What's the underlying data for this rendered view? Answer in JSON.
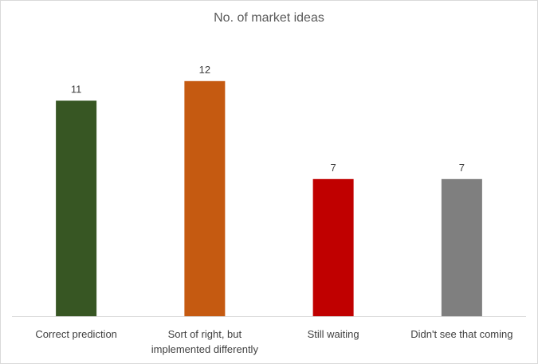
{
  "chart_data": {
    "type": "bar",
    "title": "No. of market ideas",
    "categories": [
      [
        "Correct prediction"
      ],
      [
        "Sort of right, but",
        "implemented differently"
      ],
      [
        "Still waiting"
      ],
      [
        "Didn't see that coming"
      ]
    ],
    "values": [
      11,
      12,
      7,
      7
    ],
    "colors": [
      "#375623",
      "#c55a11",
      "#c00000",
      "#7f7f7f"
    ],
    "data_labels": [
      "11",
      "12",
      "7",
      "7"
    ],
    "ylim": [
      0,
      14
    ],
    "grid": false,
    "legend": "none",
    "xlabel": "",
    "ylabel": ""
  }
}
